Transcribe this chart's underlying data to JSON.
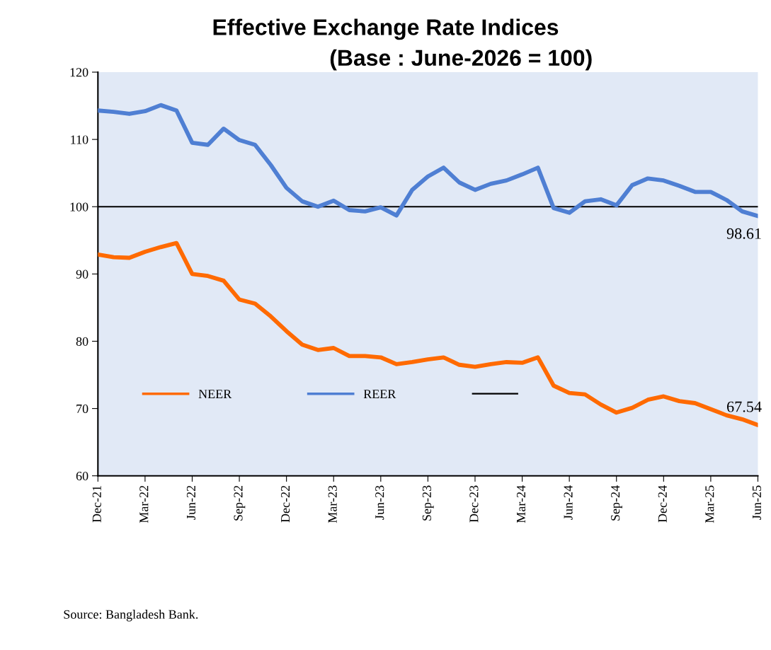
{
  "chart_data": {
    "type": "line",
    "title": "Effective Exchange Rate Indices",
    "subtitle": "(Base : June-2026 = 100)",
    "categories": [
      "Dec-21",
      null,
      null,
      "Mar-22",
      null,
      null,
      "Jun-22",
      null,
      null,
      "Sep-22",
      null,
      null,
      "Dec-22",
      null,
      null,
      "Mar-23",
      null,
      null,
      "Jun-23",
      null,
      null,
      "Sep-23",
      null,
      null,
      "Dec-23",
      null,
      null,
      "Mar-24",
      null,
      null,
      "Jun-24",
      null,
      null,
      "Sep-24",
      null,
      null,
      "Dec-24",
      null,
      null,
      "Mar-25",
      null,
      null,
      "Jun-25"
    ],
    "series": [
      {
        "name": "NEER",
        "color": "#ff6a00",
        "values": [
          92.9,
          92.5,
          92.4,
          93.3,
          94.0,
          94.6,
          90.0,
          89.7,
          89.0,
          86.2,
          85.6,
          83.7,
          81.5,
          79.5,
          78.7,
          79.0,
          77.8,
          77.8,
          77.6,
          76.6,
          76.9,
          77.3,
          77.6,
          76.5,
          76.2,
          76.6,
          76.9,
          76.8,
          77.6,
          73.4,
          72.3,
          72.1,
          70.6,
          69.4,
          70.1,
          71.3,
          71.8,
          71.1,
          70.8,
          69.9,
          69.0,
          68.4,
          67.54
        ],
        "value_labels": [
          null,
          null,
          null,
          null,
          null,
          null,
          null,
          null,
          null,
          null,
          null,
          null,
          null,
          null,
          null,
          null,
          null,
          null,
          null,
          null,
          null,
          null,
          null,
          null,
          null,
          null,
          null,
          null,
          null,
          null,
          null,
          null,
          null,
          null,
          null,
          null,
          null,
          null,
          null,
          null,
          null,
          null,
          "67.54"
        ]
      },
      {
        "name": "REER",
        "color": "#4f7fd3",
        "values": [
          114.3,
          114.1,
          113.8,
          114.2,
          115.1,
          114.3,
          109.5,
          109.2,
          111.6,
          109.9,
          109.2,
          106.2,
          102.8,
          100.8,
          100.0,
          100.9,
          99.5,
          99.3,
          99.9,
          98.7,
          102.5,
          104.5,
          105.8,
          103.6,
          102.5,
          103.4,
          103.9,
          104.8,
          105.8,
          99.8,
          99.1,
          100.8,
          101.1,
          100.2,
          103.2,
          104.2,
          103.9,
          103.1,
          102.2,
          102.2,
          101.0,
          99.3,
          98.61
        ],
        "value_labels": [
          null,
          null,
          null,
          null,
          null,
          null,
          null,
          null,
          null,
          null,
          null,
          null,
          null,
          null,
          null,
          null,
          null,
          null,
          null,
          null,
          null,
          null,
          null,
          null,
          null,
          null,
          null,
          null,
          null,
          null,
          null,
          null,
          null,
          null,
          null,
          null,
          null,
          null,
          null,
          null,
          null,
          null,
          "98.61"
        ]
      }
    ],
    "ref_lines": [
      {
        "axis": "y",
        "value": 100,
        "color": "#000000",
        "line_style": "solid"
      }
    ],
    "ylim": [
      60,
      120
    ],
    "yticks": [
      60,
      70,
      80,
      90,
      100,
      110,
      120
    ],
    "grid": false,
    "legend": "bottom",
    "marker": "none",
    "line_style": "solid",
    "annotations": [
      "Source: Bangladesh Bank."
    ]
  }
}
